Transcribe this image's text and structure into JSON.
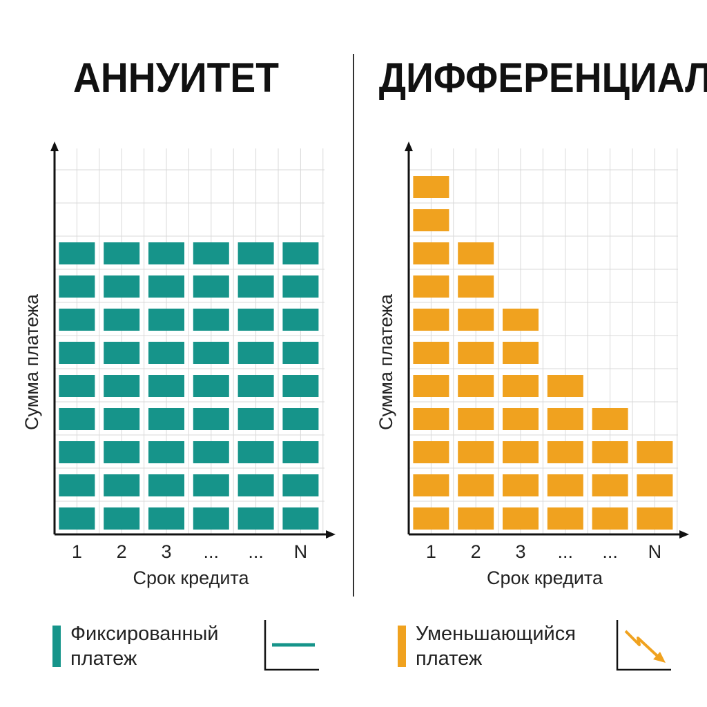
{
  "colors": {
    "annuity": "#16948a",
    "differential": "#f0a21f",
    "grid": "#d9d9d9",
    "axis": "#111111"
  },
  "chart_data": [
    {
      "type": "bar",
      "title": "АННУИТЕТ",
      "xlabel": "Срок кредита",
      "ylabel": "Сумма платежа",
      "categories": [
        "1",
        "2",
        "3",
        "...",
        "...",
        "N"
      ],
      "series": [
        {
          "name": "Фиксированный платеж",
          "values": [
            9,
            9,
            9,
            9,
            9,
            9
          ]
        }
      ],
      "ylim": [
        0,
        11
      ],
      "grid": true
    },
    {
      "type": "bar",
      "title": "ДИФФЕРЕНЦИАЛ",
      "xlabel": "Срок кредита",
      "ylabel": "Сумма платежа",
      "categories": [
        "1",
        "2",
        "3",
        "...",
        "...",
        "N"
      ],
      "series": [
        {
          "name": "Уменьшающийся платеж",
          "values": [
            11,
            9,
            7,
            5,
            4,
            3
          ]
        }
      ],
      "ylim": [
        0,
        11
      ],
      "grid": true
    }
  ],
  "legend": {
    "annuity": {
      "line1": "Фиксированный",
      "line2": "платеж",
      "icon": "flat-line-icon"
    },
    "differential": {
      "line1": "Уменьшающийся",
      "line2": "платеж",
      "icon": "decreasing-arrow-icon"
    }
  }
}
